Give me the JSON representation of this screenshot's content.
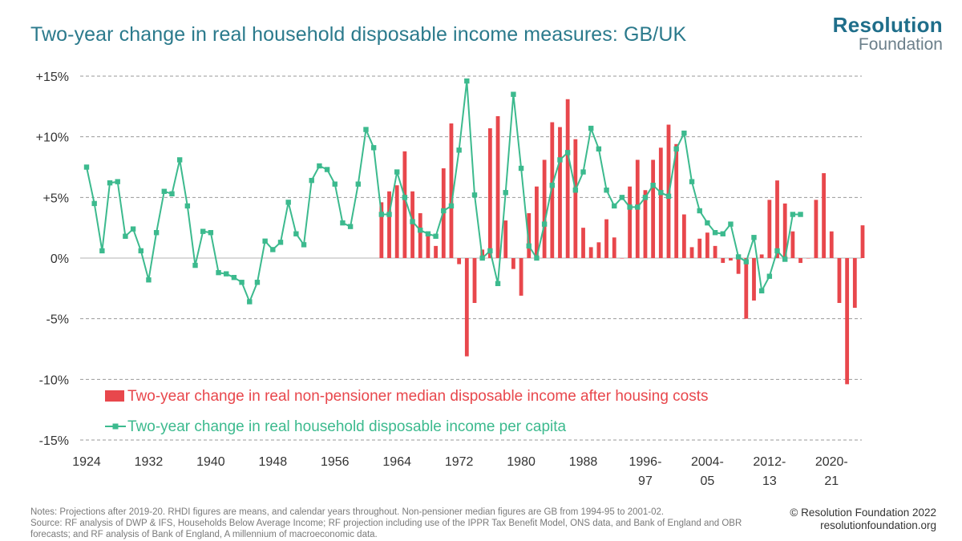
{
  "header": {
    "title": "Two-year change in real household disposable income measures: GB/UK",
    "logo_line1": "Resolution",
    "logo_line2": "Foundation"
  },
  "footer": {
    "notes_line1": "Notes: Projections after 2019-20. RHDI figures are means, and calendar years throughout. Non-pensioner median figures are GB from 1994-95 to 2001-02.",
    "notes_line2": "Source: RF analysis of DWP & IFS, Households Below Average Income; RF projection including use of the IPPR Tax Benefit Model, ONS data, and Bank of England and OBR",
    "notes_line3": "forecasts; and RF analysis of Bank of England, A millennium of macroeconomic data.",
    "copyright": "© Resolution Foundation 2022",
    "website": "resolutionfoundation.org"
  },
  "colors": {
    "bars": "#e8474c",
    "line": "#3cba8e",
    "grid": "#999999",
    "title": "#2b7a8c"
  },
  "chart_data": {
    "type": "bar+line",
    "ylim": [
      -15,
      15
    ],
    "y_ticks": [
      15,
      10,
      5,
      0,
      -5,
      -10,
      -15
    ],
    "y_tick_labels": [
      "+15%",
      "+10%",
      "+5%",
      "0%",
      "-5%",
      "-10%",
      "-15%"
    ],
    "x_ticks": [
      {
        "line1": "1924",
        "line2": "",
        "at": 0
      },
      {
        "line1": "1932",
        "line2": "",
        "at": 8
      },
      {
        "line1": "1940",
        "line2": "",
        "at": 16
      },
      {
        "line1": "1948",
        "line2": "",
        "at": 24
      },
      {
        "line1": "1956",
        "line2": "",
        "at": 32
      },
      {
        "line1": "1964",
        "line2": "",
        "at": 40
      },
      {
        "line1": "1972",
        "line2": "",
        "at": 48
      },
      {
        "line1": "1980",
        "line2": "",
        "at": 56
      },
      {
        "line1": "1988",
        "line2": "",
        "at": 64
      },
      {
        "line1": "1996-",
        "line2": "97",
        "at": 72
      },
      {
        "line1": "2004-",
        "line2": "05",
        "at": 80
      },
      {
        "line1": "2012-",
        "line2": "13",
        "at": 88
      },
      {
        "line1": "2020-",
        "line2": "21",
        "at": 96
      }
    ],
    "grid": true,
    "legend_position": "bottom-left",
    "series": [
      {
        "name": "Two-year change in real non-pensioner median disposable income after housing costs",
        "type": "bar",
        "start_index": 38,
        "values": [
          4.6,
          5.5,
          6.0,
          8.8,
          5.5,
          3.7,
          2.0,
          1.0,
          7.4,
          11.1,
          -0.5,
          -8.1,
          -3.7,
          0.7,
          10.7,
          11.7,
          3.1,
          -0.9,
          -3.1,
          3.7,
          5.9,
          8.1,
          11.2,
          10.8,
          13.1,
          9.8,
          2.5,
          0.9,
          1.3,
          3.2,
          1.7,
          0.0,
          5.9,
          8.1,
          5.6,
          8.1,
          9.1,
          11.0,
          9.4,
          3.6,
          0.9,
          1.6,
          2.1,
          1.0,
          -0.4,
          -0.2,
          -1.3,
          -5.0,
          -3.5,
          0.3,
          4.8,
          6.4,
          4.5,
          2.2,
          -0.4,
          0.0,
          4.8,
          7.0,
          2.2,
          -3.7,
          -10.4,
          -4.1,
          2.7
        ]
      },
      {
        "name": "Two-year change in real household disposable income per capita",
        "type": "line",
        "start_index": 0,
        "values": [
          7.5,
          4.5,
          0.6,
          6.2,
          6.3,
          1.8,
          2.4,
          0.6,
          -1.8,
          2.1,
          5.5,
          5.3,
          8.1,
          4.3,
          -0.6,
          2.2,
          2.1,
          -1.2,
          -1.3,
          -1.6,
          -2.0,
          -3.6,
          -2.0,
          1.4,
          0.7,
          1.3,
          4.6,
          2.0,
          1.1,
          6.4,
          7.6,
          7.3,
          6.1,
          2.9,
          2.6,
          6.1,
          10.6,
          9.1,
          3.6,
          3.6,
          7.1,
          5.0,
          3.0,
          2.3,
          2.0,
          1.8,
          3.9,
          4.3,
          8.9,
          14.6,
          5.2,
          0.0,
          0.6,
          -2.1,
          5.4,
          13.5,
          7.4,
          1.0,
          0.0,
          2.8,
          6.0,
          8.1,
          8.7,
          5.6,
          7.1,
          10.7,
          9.0,
          5.6,
          4.3,
          5.0,
          4.2,
          4.2,
          5.0,
          6.0,
          5.4,
          5.1,
          9.0,
          10.3,
          6.3,
          3.9,
          2.9,
          2.1,
          2.0,
          2.8,
          0.1,
          -0.3,
          1.7,
          -2.7,
          -1.5,
          0.6,
          -0.1,
          3.6,
          3.6
        ]
      }
    ]
  }
}
